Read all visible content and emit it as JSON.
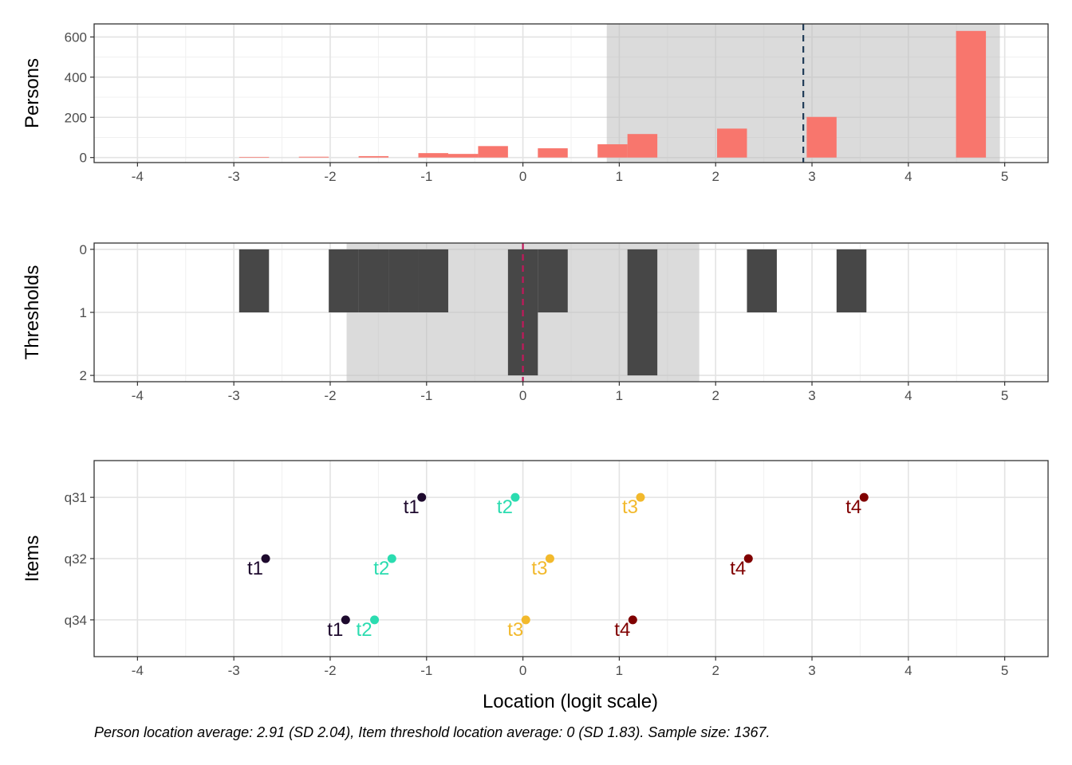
{
  "chart_data": [
    {
      "type": "bar",
      "panel": "persons",
      "ylabel": "Persons",
      "xlim": [
        -4.45,
        5.45
      ],
      "ylim": [
        -25,
        665
      ],
      "x_ticks": [
        -4,
        -3,
        -2,
        -1,
        0,
        1,
        2,
        3,
        4,
        5
      ],
      "x_tick_labels": [
        "-4",
        "-3",
        "-2",
        "-1",
        "0",
        "1",
        "2",
        "3",
        "4",
        "5"
      ],
      "y_ticks": [
        0,
        200,
        400,
        600
      ],
      "y_tick_labels": [
        "0",
        "200",
        "400",
        "600"
      ],
      "bar_color": "#F8766D",
      "bin_width": 0.31,
      "bars": [
        {
          "x": -2.79,
          "y": 3
        },
        {
          "x": -2.17,
          "y": 4
        },
        {
          "x": -1.55,
          "y": 7
        },
        {
          "x": -0.93,
          "y": 22
        },
        {
          "x": -0.62,
          "y": 18
        },
        {
          "x": -0.31,
          "y": 57
        },
        {
          "x": 0.31,
          "y": 46
        },
        {
          "x": 0.93,
          "y": 66
        },
        {
          "x": 1.24,
          "y": 117
        },
        {
          "x": 2.17,
          "y": 144
        },
        {
          "x": 3.1,
          "y": 202
        },
        {
          "x": 4.65,
          "y": 630
        }
      ],
      "shade_band": [
        0.87,
        4.95
      ],
      "mean_line": 2.91,
      "mean_line_color": "#1F3B57",
      "grid": true
    },
    {
      "type": "bar",
      "panel": "thresholds",
      "ylabel": "Thresholds",
      "xlim": [
        -4.45,
        5.45
      ],
      "ylim": [
        2.1,
        -0.1
      ],
      "y_reversed": true,
      "x_ticks": [
        -4,
        -3,
        -2,
        -1,
        0,
        1,
        2,
        3,
        4,
        5
      ],
      "x_tick_labels": [
        "-4",
        "-3",
        "-2",
        "-1",
        "0",
        "1",
        "2",
        "3",
        "4",
        "5"
      ],
      "y_ticks": [
        0,
        1,
        2
      ],
      "y_tick_labels": [
        "0",
        "1",
        "2"
      ],
      "bar_color": "#474747",
      "bin_width": 0.31,
      "bars": [
        {
          "x": -2.79,
          "y": 1
        },
        {
          "x": -1.86,
          "y": 1
        },
        {
          "x": -1.55,
          "y": 1
        },
        {
          "x": -1.24,
          "y": 1
        },
        {
          "x": -0.93,
          "y": 1
        },
        {
          "x": 0.0,
          "y": 2
        },
        {
          "x": 0.31,
          "y": 1
        },
        {
          "x": 1.24,
          "y": 2
        },
        {
          "x": 2.48,
          "y": 1
        },
        {
          "x": 3.41,
          "y": 1
        }
      ],
      "shade_band": [
        -1.83,
        1.83
      ],
      "mean_line": 0,
      "mean_line_color": "#C2185B",
      "grid": true
    },
    {
      "type": "scatter",
      "panel": "items",
      "xlabel": "Location (logit scale)",
      "ylabel": "Items",
      "xlim": [
        -4.45,
        5.45
      ],
      "x_ticks": [
        -4,
        -3,
        -2,
        -1,
        0,
        1,
        2,
        3,
        4,
        5
      ],
      "x_tick_labels": [
        "-4",
        "-3",
        "-2",
        "-1",
        "0",
        "1",
        "2",
        "3",
        "4",
        "5"
      ],
      "categories": [
        "q31",
        "q32",
        "q34"
      ],
      "threshold_colors": {
        "t1": "#1E0A2E",
        "t2": "#2BDCB0",
        "t3": "#F2B92C",
        "t4": "#800000"
      },
      "points": [
        {
          "item": "q31",
          "label": "t1",
          "x": -1.05
        },
        {
          "item": "q31",
          "label": "t2",
          "x": -0.08
        },
        {
          "item": "q31",
          "label": "t3",
          "x": 1.22
        },
        {
          "item": "q31",
          "label": "t4",
          "x": 3.54
        },
        {
          "item": "q32",
          "label": "t1",
          "x": -2.67
        },
        {
          "item": "q32",
          "label": "t2",
          "x": -1.36
        },
        {
          "item": "q32",
          "label": "t3",
          "x": 0.28
        },
        {
          "item": "q32",
          "label": "t4",
          "x": 2.34
        },
        {
          "item": "q34",
          "label": "t1",
          "x": -1.84
        },
        {
          "item": "q34",
          "label": "t2",
          "x": -1.54
        },
        {
          "item": "q34",
          "label": "t3",
          "x": 0.03
        },
        {
          "item": "q34",
          "label": "t4",
          "x": 1.14
        }
      ],
      "grid": true
    }
  ],
  "caption": "Person location average: 2.91 (SD 2.04), Item threshold location average: 0 (SD 1.83). Sample size: 1367."
}
